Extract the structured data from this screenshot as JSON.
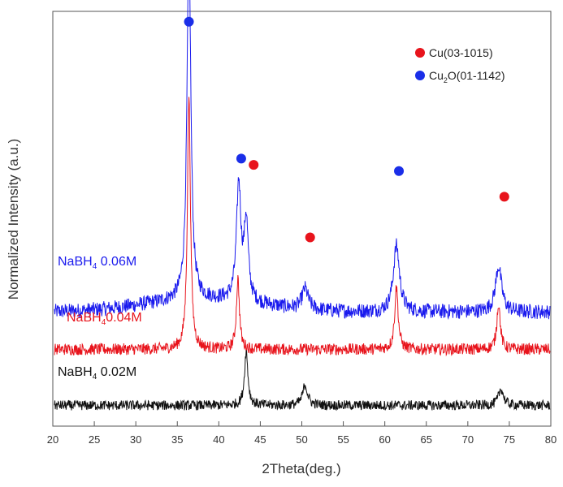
{
  "chart_data": {
    "type": "line",
    "title": "",
    "xlabel": "2Theta(deg.)",
    "ylabel": "Normalized Intensity (a.u.)",
    "xlim": [
      20,
      80
    ],
    "xticks": [
      20,
      25,
      30,
      35,
      40,
      45,
      50,
      55,
      60,
      65,
      70,
      75,
      80
    ],
    "xtick_labels": [
      "20",
      "25",
      "30",
      "35",
      "40",
      "45",
      "50",
      "55",
      "60",
      "65",
      "70",
      "75",
      "80"
    ],
    "ylim": [
      0,
      1
    ],
    "grid": false,
    "legend": {
      "placement": "top-right",
      "entries": [
        {
          "base": "Cu(03-1015)",
          "sub": "",
          "rest": "",
          "color": "#e8141c"
        },
        {
          "base": "Cu",
          "sub": "2",
          "rest": "O(01-1142)",
          "color": "#1a2ee8"
        }
      ]
    },
    "series": [
      {
        "color": "#1a1aee",
        "label_base": "NaBH",
        "label_sub": "4",
        "label_rest": " 0.06M",
        "baseline": 0.275,
        "noise": 0.018,
        "hump": 0.03,
        "peaks": [
          {
            "x": 36.4,
            "height": 0.86,
            "width": 0.28
          },
          {
            "x": 42.4,
            "height": 0.28,
            "width": 0.32
          },
          {
            "x": 43.3,
            "height": 0.19,
            "width": 0.3
          },
          {
            "x": 50.4,
            "height": 0.05,
            "width": 0.45
          },
          {
            "x": 61.4,
            "height": 0.16,
            "width": 0.45
          },
          {
            "x": 73.7,
            "height": 0.11,
            "width": 0.45
          }
        ],
        "markers": [
          {
            "x": 36.4,
            "color": "#1a2ee8",
            "y": 0.975
          },
          {
            "x": 42.7,
            "color": "#1a2ee8",
            "y": 0.645
          },
          {
            "x": 44.2,
            "color": "#e8141c",
            "y": 0.63
          },
          {
            "x": 51.0,
            "color": "#e8141c",
            "y": 0.455
          },
          {
            "x": 61.7,
            "color": "#1a2ee8",
            "y": 0.615
          },
          {
            "x": 74.4,
            "color": "#e8141c",
            "y": 0.553
          }
        ]
      },
      {
        "color": "#e8141c",
        "label_base": "NaBH",
        "label_sub": "4",
        "label_rest": "0.04M",
        "baseline": 0.185,
        "noise": 0.014,
        "hump": 0.0,
        "peaks": [
          {
            "x": 36.4,
            "height": 0.61,
            "width": 0.22
          },
          {
            "x": 42.3,
            "height": 0.17,
            "width": 0.22
          },
          {
            "x": 61.4,
            "height": 0.15,
            "width": 0.25
          },
          {
            "x": 73.7,
            "height": 0.11,
            "width": 0.25
          }
        ],
        "markers": []
      },
      {
        "color": "#111111",
        "label_base": "NaBH",
        "label_sub": "4",
        "label_rest": " 0.02M",
        "baseline": 0.05,
        "noise": 0.012,
        "hump": 0.0,
        "peaks": [
          {
            "x": 43.3,
            "height": 0.13,
            "width": 0.25
          },
          {
            "x": 50.4,
            "height": 0.05,
            "width": 0.35
          },
          {
            "x": 74.0,
            "height": 0.04,
            "width": 0.35
          }
        ],
        "markers": []
      }
    ]
  }
}
